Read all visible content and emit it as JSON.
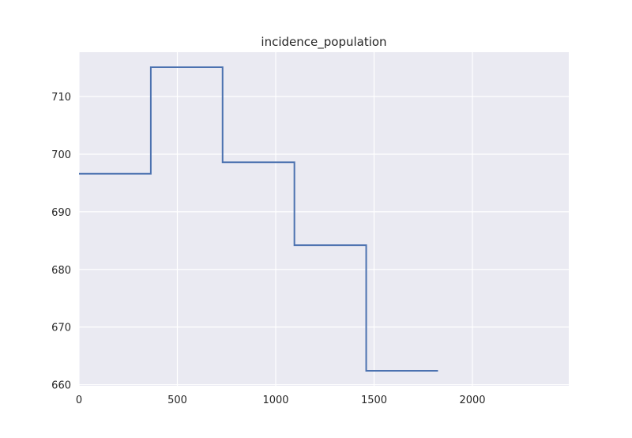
{
  "chart_data": {
    "type": "line",
    "drawstyle": "steps-post",
    "title": "incidence_population",
    "xlabel": "",
    "ylabel": "",
    "xlim": [
      0,
      2490
    ],
    "ylim": [
      659.8,
      717.7
    ],
    "xticks": [
      0,
      500,
      1000,
      1500,
      2000
    ],
    "yticks": [
      660,
      670,
      680,
      690,
      700,
      710
    ],
    "xtick_labels": [
      "0",
      "500",
      "1000",
      "1500",
      "2000"
    ],
    "ytick_labels": [
      "660",
      "670",
      "680",
      "690",
      "700",
      "710"
    ],
    "grid": true,
    "legend": "none",
    "series": [
      {
        "x": [
          0,
          365,
          730,
          1095,
          1460,
          1825
        ],
        "y": [
          696.6,
          715.1,
          698.6,
          684.2,
          662.4,
          662.4
        ],
        "color": "#4c72b0"
      }
    ]
  },
  "colors": {
    "plot_background": "#eaeaf2",
    "grid": "#ffffff",
    "line": "#4c72b0",
    "text": "#262626"
  }
}
